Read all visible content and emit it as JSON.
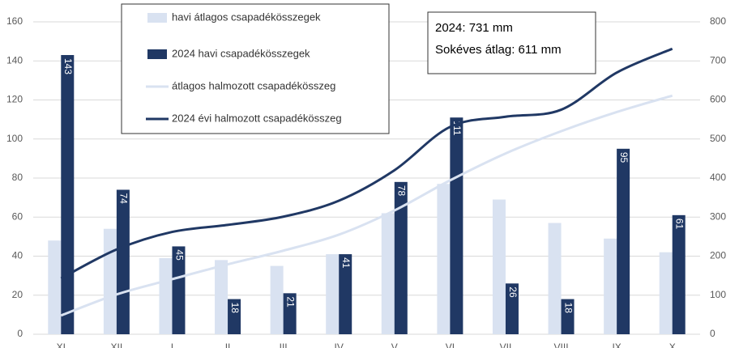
{
  "chart_data": {
    "type": "bar",
    "categories": [
      "XI",
      "XII",
      "I",
      "II",
      "III",
      "IV",
      "V",
      "VI",
      "VII",
      "VIII",
      "IX",
      "X"
    ],
    "series": [
      {
        "name": "havi átlagos csapadékösszegek",
        "type": "bar",
        "axis": "y",
        "color": "#d9e2f1",
        "values": [
          48,
          54,
          39,
          38,
          35,
          41,
          62,
          77,
          69,
          57,
          49,
          42
        ]
      },
      {
        "name": "2024 havi csapadékösszegek",
        "type": "bar",
        "axis": "y",
        "color": "#203864",
        "values": [
          143,
          74,
          45,
          18,
          21,
          41,
          78,
          111,
          26,
          18,
          95,
          61
        ]
      },
      {
        "name": "átlagos halmozott csapadékösszeg",
        "type": "line",
        "axis": "y2",
        "color": "#d9e2f1",
        "values": [
          48,
          102,
          141,
          179,
          214,
          255,
          317,
          394,
          463,
          520,
          569,
          611
        ]
      },
      {
        "name": "2024 évi halmozott csapadékösszeg",
        "type": "line",
        "axis": "y2",
        "color": "#203864",
        "values": [
          143,
          217,
          262,
          280,
          301,
          342,
          420,
          531,
          557,
          575,
          670,
          731
        ]
      }
    ],
    "ylim": [
      0,
      160
    ],
    "yticks": [
      0,
      20,
      40,
      60,
      80,
      100,
      120,
      140,
      160
    ],
    "y2lim": [
      0,
      800
    ],
    "y2ticks": [
      0,
      100,
      200,
      300,
      400,
      500,
      600,
      700,
      800
    ],
    "grid": true,
    "annotations": [
      "2024: 731 mm",
      "Sokéves átlag: 611 mm"
    ]
  }
}
